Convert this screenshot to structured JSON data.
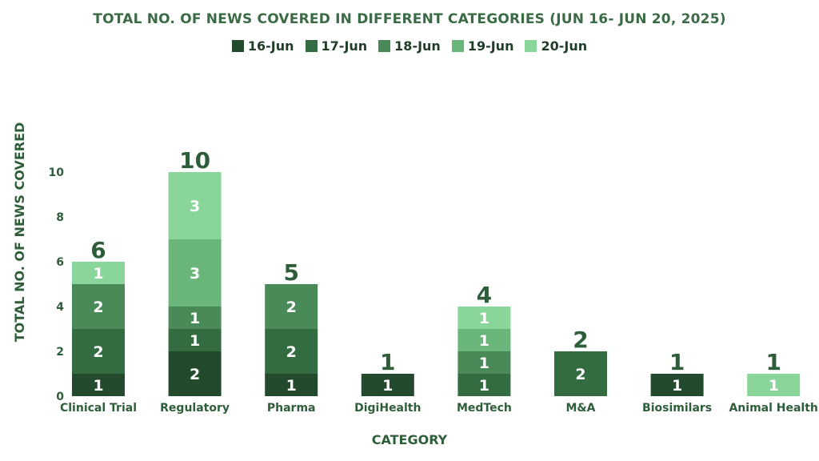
{
  "chart_data": {
    "type": "bar",
    "stacked": true,
    "title": "TOTAL NO. OF NEWS COVERED IN DIFFERENT CATEGORIES (JUN 16- JUN 20, 2025)",
    "xlabel": "CATEGORY",
    "ylabel": "TOTAL  NO. OF NEWS COVERED",
    "ylim": [
      0,
      10
    ],
    "yticks": [
      "0",
      "2",
      "4",
      "6",
      "8",
      "10"
    ],
    "grid": false,
    "legend_position": "top",
    "categories": [
      "Clinical Trial",
      "Regulatory",
      "Pharma",
      "DigiHealth",
      "MedTech",
      "M&A",
      "Biosimilars",
      "Animal Health"
    ],
    "totals": [
      6,
      10,
      5,
      1,
      4,
      2,
      1,
      1
    ],
    "series": [
      {
        "name": "16-Jun",
        "color": "#234a2c",
        "values": [
          1,
          2,
          1,
          1,
          0,
          0,
          1,
          0
        ]
      },
      {
        "name": "17-Jun",
        "color": "#346c42",
        "values": [
          2,
          1,
          2,
          0,
          1,
          2,
          0,
          0
        ]
      },
      {
        "name": "18-Jun",
        "color": "#4a8a58",
        "values": [
          2,
          1,
          2,
          0,
          1,
          0,
          0,
          0
        ]
      },
      {
        "name": "19-Jun",
        "color": "#6ab57a",
        "values": [
          0,
          3,
          0,
          0,
          1,
          0,
          0,
          0
        ]
      },
      {
        "name": "20-Jun",
        "color": "#8ad69a",
        "values": [
          1,
          3,
          0,
          0,
          1,
          0,
          0,
          1
        ]
      }
    ]
  },
  "colors": {
    "title": "#3a6b45",
    "axis_text": "#2e5e39",
    "total_label": "#2e5e39",
    "segment_label": "#ffffff"
  }
}
